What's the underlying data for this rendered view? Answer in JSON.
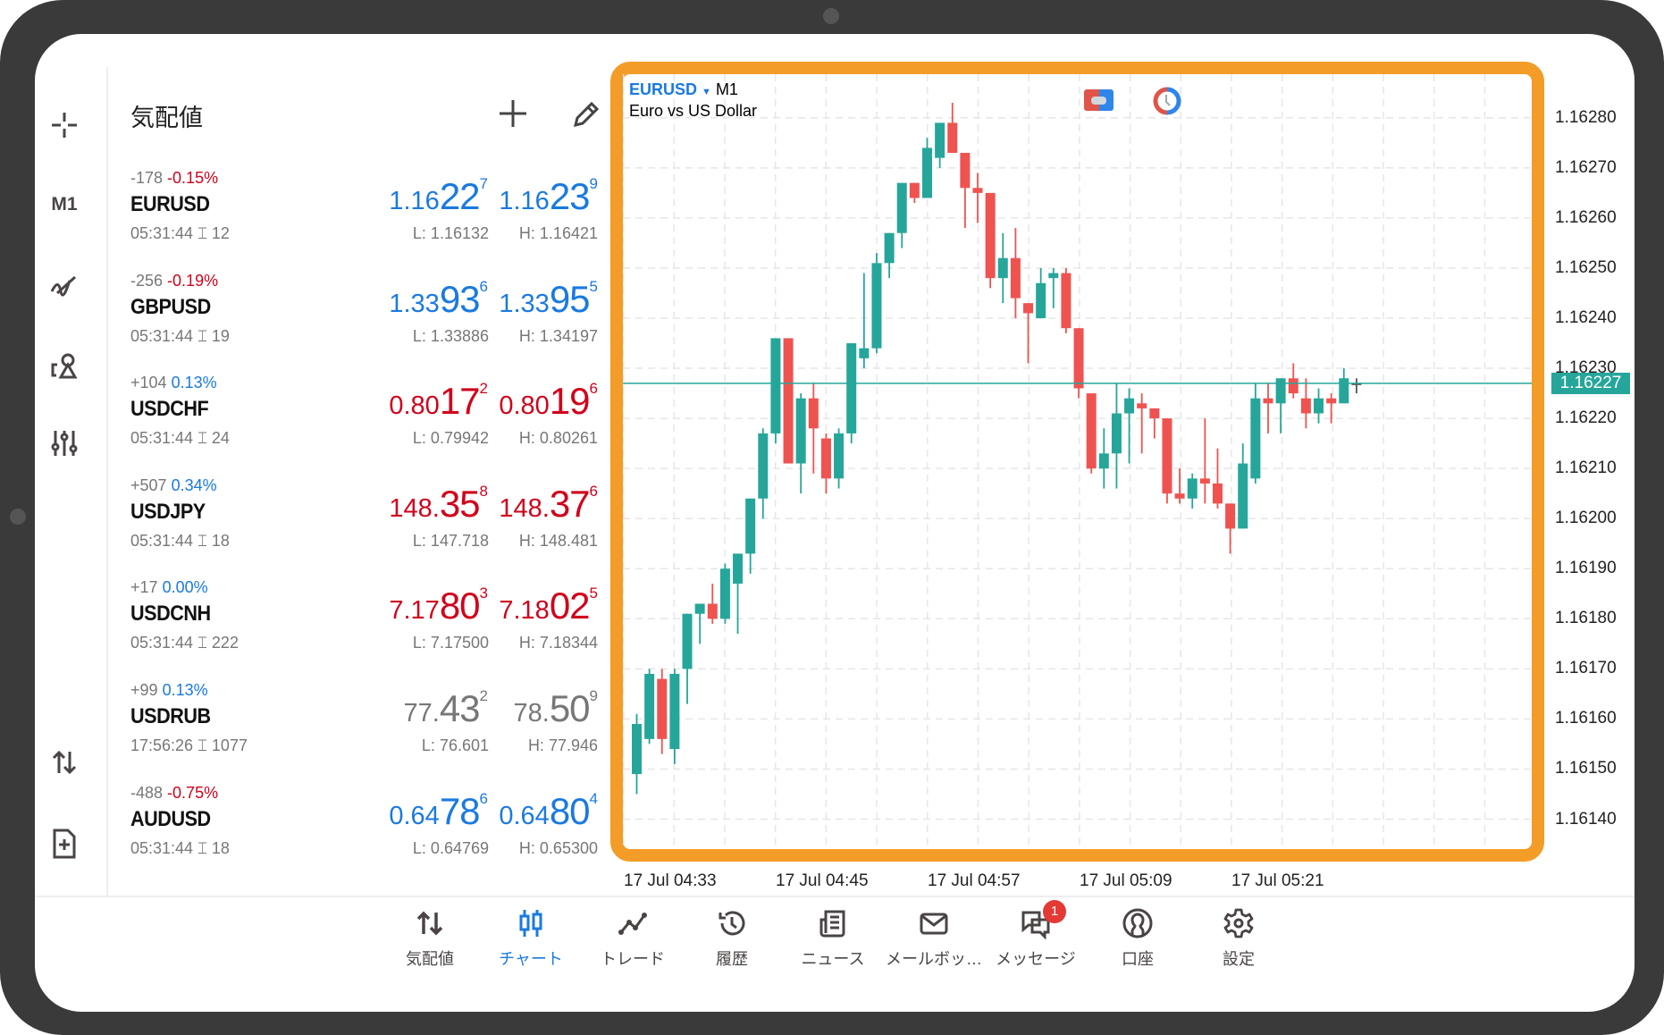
{
  "colors": {
    "accent": "#1a7ae0",
    "up": "#26a69a",
    "down": "#ef5350",
    "border": "#f39c27",
    "price_blue": "#1a7ae0",
    "price_red": "#d0021b",
    "price_gray": "#777777"
  },
  "left_toolbar": {
    "timeframe": "M1",
    "icons": [
      "crosshair-icon",
      "indicators-icon",
      "objects-icon",
      "settings-sliders-icon",
      "trade-arrows-icon",
      "new-order-icon"
    ]
  },
  "watchlist": {
    "title": "気配値",
    "rows": [
      {
        "change": "-178",
        "pct": "-0.15%",
        "pct_color": "red",
        "symbol": "EURUSD",
        "time": "05:31:44",
        "spread": "12",
        "bid": {
          "a": "1.16",
          "b": "22",
          "c": "7"
        },
        "ask": {
          "a": "1.16",
          "b": "23",
          "c": "9"
        },
        "low": "L: 1.16132",
        "high": "H: 1.16421",
        "color": "blue"
      },
      {
        "change": "-256",
        "pct": "-0.19%",
        "pct_color": "red",
        "symbol": "GBPUSD",
        "time": "05:31:44",
        "spread": "19",
        "bid": {
          "a": "1.33",
          "b": "93",
          "c": "6"
        },
        "ask": {
          "a": "1.33",
          "b": "95",
          "c": "5"
        },
        "low": "L: 1.33886",
        "high": "H: 1.34197",
        "color": "blue"
      },
      {
        "change": "+104",
        "pct": "0.13%",
        "pct_color": "blue",
        "symbol": "USDCHF",
        "time": "05:31:44",
        "spread": "24",
        "bid": {
          "a": "0.80",
          "b": "17",
          "c": "2"
        },
        "ask": {
          "a": "0.80",
          "b": "19",
          "c": "6"
        },
        "low": "L: 0.79942",
        "high": "H: 0.80261",
        "color": "red"
      },
      {
        "change": "+507",
        "pct": "0.34%",
        "pct_color": "blue",
        "symbol": "USDJPY",
        "time": "05:31:44",
        "spread": "18",
        "bid": {
          "a": "148.",
          "b": "35",
          "c": "8"
        },
        "ask": {
          "a": "148.",
          "b": "37",
          "c": "6"
        },
        "low": "L: 147.718",
        "high": "H: 148.481",
        "color": "red"
      },
      {
        "change": "+17",
        "pct": "0.00%",
        "pct_color": "blue",
        "symbol": "USDCNH",
        "time": "05:31:44",
        "spread": "222",
        "bid": {
          "a": "7.17",
          "b": "80",
          "c": "3"
        },
        "ask": {
          "a": "7.18",
          "b": "02",
          "c": "5"
        },
        "low": "L: 7.17500",
        "high": "H: 7.18344",
        "color": "red"
      },
      {
        "change": "+99",
        "pct": "0.13%",
        "pct_color": "blue",
        "symbol": "USDRUB",
        "time": "17:56:26",
        "spread": "1077",
        "bid": {
          "a": "77.",
          "b": "43",
          "c": "2"
        },
        "ask": {
          "a": "78.",
          "b": "50",
          "c": "9"
        },
        "low": "L: 76.601",
        "high": "H: 77.946",
        "color": "gray"
      },
      {
        "change": "-488",
        "pct": "-0.75%",
        "pct_color": "red",
        "symbol": "AUDUSD",
        "time": "05:31:44",
        "spread": "18",
        "bid": {
          "a": "0.64",
          "b": "78",
          "c": "6"
        },
        "ask": {
          "a": "0.64",
          "b": "80",
          "c": "4"
        },
        "low": "L: 0.64769",
        "high": "H: 0.65300",
        "color": "blue"
      }
    ]
  },
  "chart": {
    "symbol": "EURUSD",
    "timeframe": "M1",
    "description": "Euro vs US Dollar",
    "current_price": "1.16227",
    "current_value": 1.16227,
    "price_labels": [
      "1.16280",
      "1.16270",
      "1.16260",
      "1.16250",
      "1.16240",
      "1.16230",
      "1.16220",
      "1.16210",
      "1.16200",
      "1.16190",
      "1.16180",
      "1.16170",
      "1.16160",
      "1.16150",
      "1.16140"
    ],
    "time_labels": [
      "17 Jul 04:33",
      "17 Jul 04:45",
      "17 Jul 04:57",
      "17 Jul 05:09",
      "17 Jul 05:21"
    ]
  },
  "chart_data": {
    "type": "candlestick",
    "title": "EURUSD M1",
    "ylim": [
      1.1613,
      1.1629
    ],
    "x_start": "17 Jul 04:33",
    "interval": "1 min",
    "ohlc_points_above_1.16100": [
      [
        49,
        61,
        45,
        59
      ],
      [
        56,
        70,
        55,
        69
      ],
      [
        68,
        70,
        53,
        56
      ],
      [
        54,
        70,
        51,
        69
      ],
      [
        70,
        81,
        63,
        81
      ],
      [
        81,
        83,
        75,
        83
      ],
      [
        83,
        87,
        79,
        80
      ],
      [
        80,
        91,
        79,
        90
      ],
      [
        87,
        93,
        77,
        93
      ],
      [
        93,
        104,
        89,
        104
      ],
      [
        104,
        118,
        100,
        117
      ],
      [
        117,
        136,
        115,
        136
      ],
      [
        136,
        136,
        111,
        111
      ],
      [
        111,
        125,
        105,
        124
      ],
      [
        124,
        127,
        109,
        118
      ],
      [
        116,
        117,
        105,
        108
      ],
      [
        108,
        118,
        106,
        117
      ],
      [
        117,
        135,
        115,
        135
      ],
      [
        132,
        149,
        130,
        134
      ],
      [
        134,
        153,
        133,
        151
      ],
      [
        151,
        157,
        148,
        157
      ],
      [
        157,
        167,
        154,
        167
      ],
      [
        167,
        167,
        163,
        164
      ],
      [
        164,
        176,
        164,
        174
      ],
      [
        172,
        179,
        170,
        179
      ],
      [
        179,
        183,
        173,
        173
      ],
      [
        173,
        173,
        158,
        166
      ],
      [
        166,
        169,
        159,
        165
      ],
      [
        165,
        165,
        146,
        148
      ],
      [
        148,
        157,
        143,
        152
      ],
      [
        152,
        158,
        140,
        144
      ],
      [
        143,
        143,
        131,
        141
      ],
      [
        140,
        150,
        140,
        147
      ],
      [
        148,
        150,
        142,
        149
      ],
      [
        149,
        150,
        137,
        138
      ],
      [
        138,
        138,
        124,
        126
      ],
      [
        125,
        125,
        109,
        110
      ],
      [
        110,
        118,
        106,
        113
      ],
      [
        113,
        127,
        106,
        121
      ],
      [
        121,
        126,
        111,
        124
      ],
      [
        123,
        125,
        113,
        122
      ],
      [
        122,
        122,
        116,
        120
      ],
      [
        120,
        120,
        103,
        105
      ],
      [
        105,
        110,
        103,
        104
      ],
      [
        104,
        109,
        102,
        108
      ],
      [
        108,
        120,
        103,
        107
      ],
      [
        107,
        114,
        102,
        103
      ],
      [
        103,
        103,
        93,
        98
      ],
      [
        98,
        115,
        98,
        111
      ],
      [
        108,
        127,
        107,
        124
      ],
      [
        124,
        127,
        117,
        123
      ],
      [
        123,
        128,
        117,
        128
      ],
      [
        128,
        131,
        124,
        125
      ],
      [
        124,
        128,
        118,
        121
      ],
      [
        121,
        126,
        119,
        124
      ],
      [
        124,
        125,
        119,
        123
      ],
      [
        123,
        130,
        123,
        128
      ],
      [
        127,
        128,
        125,
        127
      ]
    ]
  },
  "bottom_nav": {
    "items": [
      {
        "label": "気配値",
        "icon": "quotes-icon"
      },
      {
        "label": "チャート",
        "icon": "chart-icon",
        "active": true
      },
      {
        "label": "トレード",
        "icon": "trade-icon"
      },
      {
        "label": "履歴",
        "icon": "history-icon"
      },
      {
        "label": "ニュース",
        "icon": "news-icon"
      },
      {
        "label": "メールボッ…",
        "icon": "mail-icon"
      },
      {
        "label": "メッセージ",
        "icon": "messages-icon",
        "badge": "1"
      },
      {
        "label": "口座",
        "icon": "account-icon"
      },
      {
        "label": "設定",
        "icon": "settings-icon"
      }
    ]
  }
}
